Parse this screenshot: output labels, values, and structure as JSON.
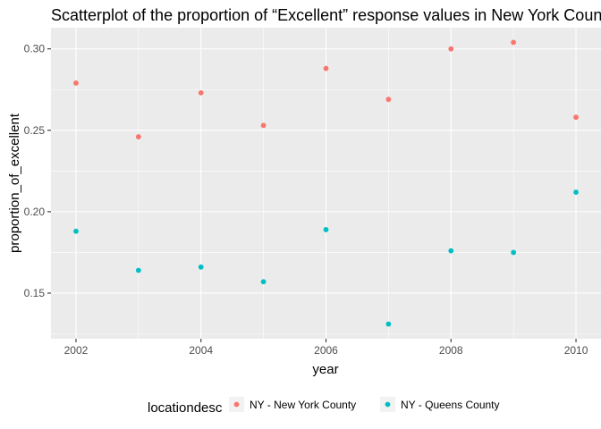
{
  "chart_data": {
    "type": "scatter",
    "title": "Scatterplot of the proportion of “Excellent” response values in New York Counties",
    "xlabel": "year",
    "ylabel": "proportion_of_excellent",
    "xlim": [
      2001.6,
      2010.4
    ],
    "ylim": [
      0.122,
      0.313
    ],
    "x_ticks": [
      2002,
      2004,
      2006,
      2008,
      2010
    ],
    "y_ticks": [
      0.15,
      0.2,
      0.25,
      0.3
    ],
    "y_tick_labels": [
      "0.15",
      "0.20",
      "0.25",
      "0.30"
    ],
    "grid": true,
    "legend": {
      "title": "locationdesc",
      "position": "bottom"
    },
    "series": [
      {
        "name": "NY - New York County",
        "color": "#F8766D",
        "points": [
          {
            "x": 2002,
            "y": 0.279
          },
          {
            "x": 2003,
            "y": 0.246
          },
          {
            "x": 2004,
            "y": 0.273
          },
          {
            "x": 2005,
            "y": 0.253
          },
          {
            "x": 2006,
            "y": 0.288
          },
          {
            "x": 2007,
            "y": 0.269
          },
          {
            "x": 2008,
            "y": 0.3
          },
          {
            "x": 2009,
            "y": 0.304
          },
          {
            "x": 2010,
            "y": 0.258
          }
        ]
      },
      {
        "name": "NY - Queens County",
        "color": "#00BFC4",
        "points": [
          {
            "x": 2002,
            "y": 0.188
          },
          {
            "x": 2003,
            "y": 0.164
          },
          {
            "x": 2004,
            "y": 0.166
          },
          {
            "x": 2005,
            "y": 0.157
          },
          {
            "x": 2006,
            "y": 0.189
          },
          {
            "x": 2007,
            "y": 0.131
          },
          {
            "x": 2008,
            "y": 0.176
          },
          {
            "x": 2009,
            "y": 0.175
          },
          {
            "x": 2010,
            "y": 0.212
          }
        ]
      }
    ]
  }
}
